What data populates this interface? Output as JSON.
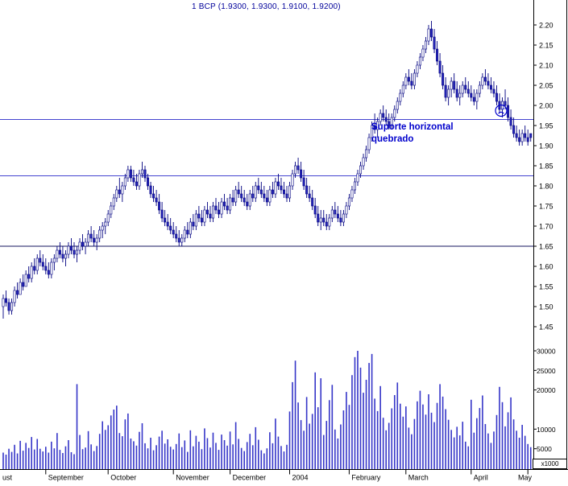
{
  "title": "1 BCP (1.9300, 1.9300, 1.9100, 1.9200)",
  "annotation": {
    "line1": "Suporte horizontal",
    "line2": "quebrado",
    "color": "#0000cc"
  },
  "colors": {
    "title_text": "#00009a",
    "candle_stroke": "#000080",
    "candle_up_fill": "#ffffff",
    "candle_down_fill": "#2626b8",
    "volume_bar": "#3535c8",
    "axis_text": "#000000",
    "frame": "#000000"
  },
  "chart_data": {
    "type": "candlestick",
    "title": "1 BCP (1.9300, 1.9300, 1.9100, 1.9200)",
    "price_axis": {
      "min": 1.45,
      "max": 2.2,
      "tick_labels": [
        "2.20",
        "2.15",
        "2.10",
        "2.05",
        "2.00",
        "1.95",
        "1.90",
        "1.85",
        "1.80",
        "1.75",
        "1.70",
        "1.65",
        "1.60",
        "1.55",
        "1.50",
        "1.45"
      ]
    },
    "volume_axis": {
      "max": 30000,
      "tick_values": [
        30000,
        25000,
        20000,
        10000,
        5000
      ],
      "multiplier": "x1000"
    },
    "x_axis": {
      "months": [
        {
          "label": "ust",
          "index": 0
        },
        {
          "label": "September",
          "index": 15
        },
        {
          "label": "October",
          "index": 37
        },
        {
          "label": "November",
          "index": 60
        },
        {
          "label": "December",
          "index": 80
        },
        {
          "label": "2004",
          "index": 101
        },
        {
          "label": "February",
          "index": 122
        },
        {
          "label": "March",
          "index": 142
        },
        {
          "label": "April",
          "index": 165
        },
        {
          "label": "May",
          "index": 185
        }
      ],
      "total_candles": 187
    },
    "support_lines": [
      {
        "price": 1.965,
        "color": "#4343d0"
      },
      {
        "price": 1.825,
        "color": "#4343d0"
      },
      {
        "price": 1.65,
        "color": "#13135e"
      }
    ],
    "annotations": [
      {
        "type": "text",
        "text": "Suporte horizontal quebrado"
      },
      {
        "type": "sad-face"
      }
    ],
    "ohlcv_columns": [
      "open",
      "high",
      "low",
      "close",
      "volume"
    ],
    "ohlcv": [
      [
        1.5,
        1.53,
        1.47,
        1.52,
        4000
      ],
      [
        1.52,
        1.54,
        1.5,
        1.51,
        3500
      ],
      [
        1.51,
        1.52,
        1.48,
        1.49,
        5000
      ],
      [
        1.49,
        1.52,
        1.48,
        1.51,
        4200
      ],
      [
        1.51,
        1.55,
        1.5,
        1.54,
        6000
      ],
      [
        1.54,
        1.56,
        1.52,
        1.53,
        3800
      ],
      [
        1.53,
        1.57,
        1.53,
        1.56,
        7000
      ],
      [
        1.56,
        1.58,
        1.54,
        1.55,
        4500
      ],
      [
        1.55,
        1.59,
        1.55,
        1.58,
        6500
      ],
      [
        1.58,
        1.6,
        1.56,
        1.57,
        5200
      ],
      [
        1.57,
        1.61,
        1.56,
        1.6,
        8000
      ],
      [
        1.6,
        1.62,
        1.58,
        1.59,
        4800
      ],
      [
        1.59,
        1.63,
        1.58,
        1.62,
        7500
      ],
      [
        1.62,
        1.64,
        1.6,
        1.61,
        5000
      ],
      [
        1.61,
        1.63,
        1.59,
        1.6,
        4300
      ],
      [
        1.6,
        1.62,
        1.58,
        1.59,
        5500
      ],
      [
        1.59,
        1.61,
        1.57,
        1.58,
        4000
      ],
      [
        1.58,
        1.62,
        1.57,
        1.61,
        6800
      ],
      [
        1.61,
        1.63,
        1.59,
        1.62,
        5100
      ],
      [
        1.62,
        1.65,
        1.61,
        1.64,
        9000
      ],
      [
        1.64,
        1.66,
        1.62,
        1.63,
        4700
      ],
      [
        1.63,
        1.65,
        1.61,
        1.62,
        3900
      ],
      [
        1.62,
        1.64,
        1.6,
        1.63,
        5600
      ],
      [
        1.63,
        1.66,
        1.62,
        1.65,
        7200
      ],
      [
        1.65,
        1.67,
        1.63,
        1.64,
        4100
      ],
      [
        1.64,
        1.66,
        1.62,
        1.63,
        3600
      ],
      [
        1.63,
        1.65,
        1.61,
        1.64,
        21500
      ],
      [
        1.64,
        1.67,
        1.63,
        1.66,
        8500
      ],
      [
        1.66,
        1.68,
        1.64,
        1.65,
        4900
      ],
      [
        1.65,
        1.67,
        1.63,
        1.66,
        5300
      ],
      [
        1.66,
        1.69,
        1.65,
        1.68,
        9500
      ],
      [
        1.68,
        1.7,
        1.66,
        1.67,
        6100
      ],
      [
        1.67,
        1.69,
        1.65,
        1.66,
        4400
      ],
      [
        1.66,
        1.68,
        1.64,
        1.67,
        5700
      ],
      [
        1.67,
        1.7,
        1.66,
        1.69,
        8800
      ],
      [
        1.69,
        1.71,
        1.67,
        1.7,
        12000
      ],
      [
        1.7,
        1.72,
        1.68,
        1.71,
        9800
      ],
      [
        1.71,
        1.74,
        1.7,
        1.73,
        11000
      ],
      [
        1.73,
        1.76,
        1.72,
        1.75,
        13500
      ],
      [
        1.75,
        1.78,
        1.74,
        1.77,
        15000
      ],
      [
        1.77,
        1.8,
        1.76,
        1.79,
        16000
      ],
      [
        1.79,
        1.82,
        1.77,
        1.78,
        9000
      ],
      [
        1.78,
        1.81,
        1.76,
        1.8,
        8200
      ],
      [
        1.8,
        1.83,
        1.79,
        1.82,
        12500
      ],
      [
        1.82,
        1.85,
        1.81,
        1.84,
        14000
      ],
      [
        1.84,
        1.85,
        1.81,
        1.82,
        7600
      ],
      [
        1.82,
        1.84,
        1.8,
        1.81,
        6900
      ],
      [
        1.81,
        1.83,
        1.79,
        1.8,
        5800
      ],
      [
        1.8,
        1.84,
        1.79,
        1.83,
        9300
      ],
      [
        1.83,
        1.86,
        1.82,
        1.84,
        11500
      ],
      [
        1.84,
        1.85,
        1.81,
        1.82,
        6400
      ],
      [
        1.82,
        1.83,
        1.79,
        1.8,
        5100
      ],
      [
        1.8,
        1.81,
        1.77,
        1.78,
        7800
      ],
      [
        1.78,
        1.8,
        1.76,
        1.77,
        4600
      ],
      [
        1.77,
        1.79,
        1.75,
        1.76,
        5900
      ],
      [
        1.76,
        1.78,
        1.73,
        1.74,
        8100
      ],
      [
        1.74,
        1.76,
        1.71,
        1.72,
        9600
      ],
      [
        1.72,
        1.74,
        1.7,
        1.71,
        6300
      ],
      [
        1.71,
        1.73,
        1.69,
        1.7,
        7400
      ],
      [
        1.7,
        1.72,
        1.68,
        1.69,
        5500
      ],
      [
        1.69,
        1.71,
        1.67,
        1.68,
        4800
      ],
      [
        1.68,
        1.7,
        1.66,
        1.67,
        6200
      ],
      [
        1.67,
        1.69,
        1.65,
        1.66,
        8900
      ],
      [
        1.66,
        1.68,
        1.65,
        1.67,
        5400
      ],
      [
        1.67,
        1.7,
        1.66,
        1.69,
        7100
      ],
      [
        1.69,
        1.71,
        1.67,
        1.68,
        4200
      ],
      [
        1.68,
        1.72,
        1.67,
        1.71,
        9700
      ],
      [
        1.71,
        1.73,
        1.69,
        1.7,
        5600
      ],
      [
        1.7,
        1.74,
        1.69,
        1.73,
        8300
      ],
      [
        1.73,
        1.75,
        1.71,
        1.72,
        6800
      ],
      [
        1.72,
        1.74,
        1.7,
        1.71,
        4900
      ],
      [
        1.71,
        1.75,
        1.7,
        1.74,
        10200
      ],
      [
        1.74,
        1.76,
        1.72,
        1.73,
        7700
      ],
      [
        1.73,
        1.75,
        1.71,
        1.72,
        5300
      ],
      [
        1.72,
        1.76,
        1.71,
        1.75,
        9100
      ],
      [
        1.75,
        1.77,
        1.73,
        1.74,
        6500
      ],
      [
        1.74,
        1.76,
        1.72,
        1.73,
        4700
      ],
      [
        1.73,
        1.77,
        1.72,
        1.76,
        8600
      ],
      [
        1.76,
        1.78,
        1.74,
        1.75,
        7200
      ],
      [
        1.75,
        1.77,
        1.73,
        1.74,
        5800
      ],
      [
        1.74,
        1.78,
        1.73,
        1.77,
        9400
      ],
      [
        1.77,
        1.79,
        1.75,
        1.76,
        6100
      ],
      [
        1.76,
        1.8,
        1.75,
        1.79,
        11800
      ],
      [
        1.79,
        1.81,
        1.77,
        1.78,
        7500
      ],
      [
        1.78,
        1.8,
        1.76,
        1.77,
        5200
      ],
      [
        1.77,
        1.79,
        1.75,
        1.76,
        4400
      ],
      [
        1.76,
        1.78,
        1.74,
        1.75,
        6700
      ],
      [
        1.75,
        1.79,
        1.74,
        1.78,
        8800
      ],
      [
        1.78,
        1.8,
        1.76,
        1.77,
        5900
      ],
      [
        1.77,
        1.81,
        1.76,
        1.8,
        10500
      ],
      [
        1.8,
        1.82,
        1.78,
        1.79,
        7300
      ],
      [
        1.79,
        1.81,
        1.77,
        1.78,
        4600
      ],
      [
        1.78,
        1.8,
        1.76,
        1.77,
        3800
      ],
      [
        1.77,
        1.79,
        1.75,
        1.76,
        5100
      ],
      [
        1.76,
        1.8,
        1.75,
        1.79,
        9200
      ],
      [
        1.79,
        1.81,
        1.77,
        1.78,
        6400
      ],
      [
        1.78,
        1.82,
        1.77,
        1.81,
        12700
      ],
      [
        1.81,
        1.83,
        1.79,
        1.8,
        8100
      ],
      [
        1.8,
        1.82,
        1.78,
        1.79,
        5700
      ],
      [
        1.79,
        1.81,
        1.77,
        1.78,
        4300
      ],
      [
        1.78,
        1.8,
        1.76,
        1.77,
        6000
      ],
      [
        1.77,
        1.81,
        1.76,
        1.8,
        14500
      ],
      [
        1.8,
        1.84,
        1.79,
        1.83,
        22000
      ],
      [
        1.83,
        1.86,
        1.82,
        1.85,
        27500
      ],
      [
        1.85,
        1.87,
        1.83,
        1.84,
        16800
      ],
      [
        1.84,
        1.86,
        1.81,
        1.82,
        12300
      ],
      [
        1.82,
        1.84,
        1.79,
        1.8,
        9600
      ],
      [
        1.8,
        1.82,
        1.77,
        1.78,
        18200
      ],
      [
        1.78,
        1.8,
        1.76,
        1.77,
        11400
      ],
      [
        1.77,
        1.79,
        1.74,
        1.75,
        13900
      ],
      [
        1.75,
        1.77,
        1.72,
        1.73,
        24500
      ],
      [
        1.73,
        1.75,
        1.7,
        1.71,
        15600
      ],
      [
        1.71,
        1.74,
        1.69,
        1.72,
        23000
      ],
      [
        1.72,
        1.74,
        1.7,
        1.71,
        8500
      ],
      [
        1.71,
        1.73,
        1.69,
        1.7,
        12100
      ],
      [
        1.7,
        1.73,
        1.69,
        1.72,
        17400
      ],
      [
        1.72,
        1.75,
        1.71,
        1.74,
        21300
      ],
      [
        1.74,
        1.76,
        1.72,
        1.73,
        9900
      ],
      [
        1.73,
        1.75,
        1.71,
        1.72,
        7600
      ],
      [
        1.72,
        1.74,
        1.7,
        1.71,
        11200
      ],
      [
        1.71,
        1.74,
        1.7,
        1.73,
        14800
      ],
      [
        1.73,
        1.76,
        1.72,
        1.75,
        19500
      ],
      [
        1.75,
        1.78,
        1.74,
        1.77,
        16200
      ],
      [
        1.77,
        1.8,
        1.76,
        1.79,
        23800
      ],
      [
        1.79,
        1.82,
        1.78,
        1.81,
        28400
      ],
      [
        1.81,
        1.84,
        1.8,
        1.83,
        30000
      ],
      [
        1.83,
        1.86,
        1.82,
        1.85,
        25700
      ],
      [
        1.85,
        1.88,
        1.84,
        1.87,
        19300
      ],
      [
        1.87,
        1.9,
        1.86,
        1.89,
        22600
      ],
      [
        1.89,
        1.93,
        1.88,
        1.92,
        26900
      ],
      [
        1.92,
        1.96,
        1.91,
        1.95,
        29200
      ],
      [
        1.95,
        1.98,
        1.93,
        1.94,
        17800
      ],
      [
        1.94,
        1.97,
        1.92,
        1.96,
        14600
      ],
      [
        1.96,
        1.99,
        1.95,
        1.98,
        21000
      ],
      [
        1.98,
        2.0,
        1.96,
        1.97,
        12900
      ],
      [
        1.97,
        1.99,
        1.95,
        1.96,
        9700
      ],
      [
        1.96,
        1.98,
        1.94,
        1.95,
        11600
      ],
      [
        1.95,
        1.98,
        1.94,
        1.97,
        15300
      ],
      [
        1.97,
        2.0,
        1.96,
        1.99,
        18700
      ],
      [
        1.99,
        2.02,
        1.98,
        2.01,
        21900
      ],
      [
        2.01,
        2.04,
        2.0,
        2.03,
        16500
      ],
      [
        2.03,
        2.06,
        2.02,
        2.05,
        13200
      ],
      [
        2.05,
        2.08,
        2.04,
        2.07,
        15800
      ],
      [
        2.07,
        2.09,
        2.05,
        2.06,
        10400
      ],
      [
        2.06,
        2.08,
        2.04,
        2.05,
        8700
      ],
      [
        2.05,
        2.09,
        2.04,
        2.08,
        12600
      ],
      [
        2.08,
        2.11,
        2.07,
        2.1,
        17100
      ],
      [
        2.1,
        2.13,
        2.09,
        2.12,
        19800
      ],
      [
        2.12,
        2.15,
        2.11,
        2.14,
        16300
      ],
      [
        2.14,
        2.17,
        2.13,
        2.16,
        13700
      ],
      [
        2.16,
        2.2,
        2.15,
        2.19,
        18900
      ],
      [
        2.19,
        2.21,
        2.16,
        2.17,
        14200
      ],
      [
        2.17,
        2.19,
        2.13,
        2.14,
        11800
      ],
      [
        2.14,
        2.16,
        2.1,
        2.11,
        16700
      ],
      [
        2.11,
        2.13,
        2.07,
        2.08,
        21500
      ],
      [
        2.08,
        2.1,
        2.04,
        2.05,
        18300
      ],
      [
        2.05,
        2.07,
        2.01,
        2.02,
        15100
      ],
      [
        2.02,
        2.05,
        2.0,
        2.04,
        12400
      ],
      [
        2.04,
        2.07,
        2.02,
        2.06,
        9800
      ],
      [
        2.06,
        2.08,
        2.03,
        2.04,
        7900
      ],
      [
        2.04,
        2.06,
        2.01,
        2.02,
        10600
      ],
      [
        2.02,
        2.05,
        2.0,
        2.03,
        8400
      ],
      [
        2.03,
        2.06,
        2.02,
        2.05,
        11900
      ],
      [
        2.05,
        2.07,
        2.03,
        2.04,
        6800
      ],
      [
        2.04,
        2.06,
        2.02,
        2.03,
        5600
      ],
      [
        2.03,
        2.05,
        2.01,
        2.02,
        17500
      ],
      [
        2.02,
        2.04,
        2.0,
        2.01,
        9100
      ],
      [
        2.01,
        2.04,
        1.99,
        2.03,
        12800
      ],
      [
        2.03,
        2.06,
        2.02,
        2.05,
        15400
      ],
      [
        2.05,
        2.08,
        2.04,
        2.07,
        18600
      ],
      [
        2.07,
        2.09,
        2.05,
        2.06,
        11300
      ],
      [
        2.06,
        2.08,
        2.04,
        2.05,
        8900
      ],
      [
        2.05,
        2.07,
        2.03,
        2.04,
        6500
      ],
      [
        2.04,
        2.06,
        2.02,
        2.03,
        9400
      ],
      [
        2.03,
        2.05,
        2.0,
        2.01,
        13600
      ],
      [
        2.01,
        2.03,
        1.98,
        1.99,
        20800
      ],
      [
        1.99,
        2.02,
        1.97,
        2.01,
        16900
      ],
      [
        2.01,
        2.04,
        1.99,
        2.0,
        10700
      ],
      [
        2.0,
        2.02,
        1.96,
        1.97,
        14300
      ],
      [
        1.97,
        1.99,
        1.94,
        1.95,
        18100
      ],
      [
        1.95,
        1.97,
        1.92,
        1.93,
        12500
      ],
      [
        1.93,
        1.95,
        1.91,
        1.92,
        9600
      ],
      [
        1.92,
        1.94,
        1.9,
        1.91,
        7800
      ],
      [
        1.91,
        1.94,
        1.9,
        1.93,
        11100
      ],
      [
        1.93,
        1.95,
        1.91,
        1.92,
        8300
      ],
      [
        1.92,
        1.94,
        1.9,
        1.91,
        6200
      ],
      [
        1.93,
        1.93,
        1.91,
        1.92,
        5400
      ]
    ]
  }
}
